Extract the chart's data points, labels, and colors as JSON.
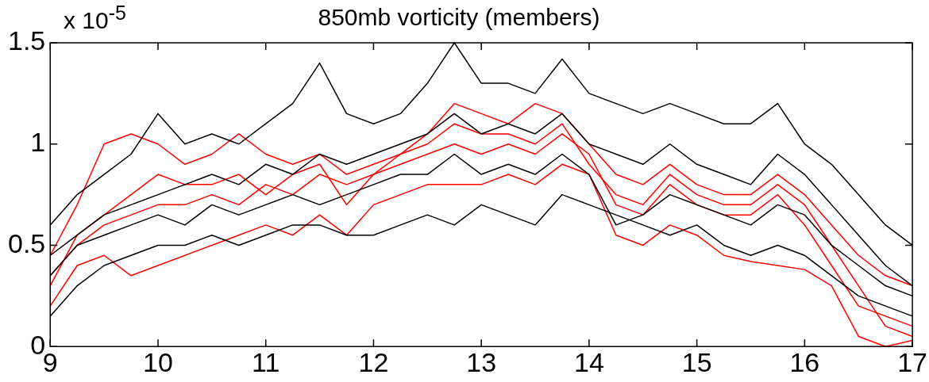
{
  "chart_data": {
    "type": "line",
    "title": "850mb vorticity (members)",
    "annotations": [
      "x 10$^{-5}$"
    ],
    "x": [
      9,
      9.25,
      9.5,
      9.75,
      10,
      10.25,
      10.5,
      10.75,
      11,
      11.25,
      11.5,
      11.75,
      12,
      12.25,
      12.5,
      12.75,
      13,
      13.25,
      13.5,
      13.75,
      14,
      14.25,
      14.5,
      14.75,
      15,
      15.25,
      15.5,
      15.75,
      16,
      16.25,
      16.5,
      16.75,
      17
    ],
    "series": [
      {
        "color": "#000000",
        "values": [
          0.6,
          0.75,
          0.85,
          0.95,
          1.15,
          1.0,
          1.05,
          1.0,
          1.1,
          1.2,
          1.4,
          1.15,
          1.1,
          1.15,
          1.3,
          1.5,
          1.3,
          1.3,
          1.25,
          1.42,
          1.25,
          1.2,
          1.15,
          1.2,
          1.15,
          1.1,
          1.1,
          1.2,
          1.0,
          0.9,
          0.75,
          0.6,
          0.5
        ]
      },
      {
        "color": "#000000",
        "values": [
          0.45,
          0.55,
          0.65,
          0.7,
          0.75,
          0.8,
          0.85,
          0.8,
          0.9,
          0.85,
          0.95,
          0.9,
          0.95,
          1.0,
          1.05,
          1.15,
          1.05,
          1.1,
          1.05,
          1.15,
          1.0,
          0.95,
          0.9,
          1.0,
          0.9,
          0.85,
          0.8,
          0.95,
          0.85,
          0.7,
          0.55,
          0.4,
          0.3
        ]
      },
      {
        "color": "#000000",
        "values": [
          0.15,
          0.3,
          0.4,
          0.45,
          0.5,
          0.5,
          0.55,
          0.5,
          0.55,
          0.6,
          0.6,
          0.55,
          0.55,
          0.6,
          0.65,
          0.6,
          0.7,
          0.65,
          0.6,
          0.75,
          0.7,
          0.65,
          0.6,
          0.55,
          0.6,
          0.5,
          0.45,
          0.5,
          0.45,
          0.35,
          0.25,
          0.2,
          0.15
        ]
      },
      {
        "color": "#000000",
        "values": [
          0.35,
          0.5,
          0.55,
          0.6,
          0.65,
          0.6,
          0.7,
          0.65,
          0.7,
          0.75,
          0.7,
          0.75,
          0.8,
          0.85,
          0.85,
          0.95,
          0.85,
          0.9,
          0.85,
          0.95,
          0.85,
          0.6,
          0.65,
          0.75,
          0.7,
          0.65,
          0.6,
          0.7,
          0.65,
          0.5,
          0.4,
          0.3,
          0.25
        ]
      },
      {
        "color": "#ff0000",
        "values": [
          0.45,
          0.7,
          1.0,
          1.05,
          1.0,
          0.9,
          0.95,
          1.05,
          0.95,
          0.9,
          0.95,
          0.85,
          0.9,
          0.95,
          1.05,
          1.2,
          1.15,
          1.1,
          1.2,
          1.15,
          1.0,
          0.85,
          0.8,
          0.9,
          0.8,
          0.75,
          0.75,
          0.85,
          0.75,
          0.6,
          0.45,
          0.35,
          0.3
        ]
      },
      {
        "color": "#ff0000",
        "values": [
          0.35,
          0.5,
          0.6,
          0.65,
          0.7,
          0.7,
          0.75,
          0.7,
          0.8,
          0.75,
          0.85,
          0.8,
          0.85,
          0.9,
          0.95,
          1.0,
          0.95,
          1.0,
          0.95,
          1.05,
          0.95,
          0.7,
          0.65,
          0.8,
          0.7,
          0.65,
          0.65,
          0.75,
          0.6,
          0.4,
          0.2,
          0.15,
          0.1
        ]
      },
      {
        "color": "#ff0000",
        "values": [
          0.2,
          0.4,
          0.45,
          0.35,
          0.4,
          0.45,
          0.5,
          0.55,
          0.6,
          0.55,
          0.65,
          0.55,
          0.7,
          0.75,
          0.8,
          0.8,
          0.8,
          0.85,
          0.8,
          0.9,
          0.85,
          0.55,
          0.5,
          0.6,
          0.55,
          0.45,
          0.42,
          0.4,
          0.38,
          0.3,
          0.05,
          0.0,
          0.03
        ]
      },
      {
        "color": "#ff0000",
        "values": [
          0.3,
          0.55,
          0.65,
          0.75,
          0.85,
          0.8,
          0.8,
          0.85,
          0.75,
          0.85,
          0.9,
          0.7,
          0.85,
          0.95,
          1.0,
          1.1,
          1.05,
          1.05,
          1.0,
          1.1,
          0.9,
          0.75,
          0.7,
          0.85,
          0.75,
          0.7,
          0.7,
          0.8,
          0.7,
          0.5,
          0.3,
          0.1,
          0.05
        ]
      }
    ],
    "xlim": [
      9,
      17
    ],
    "xticks": [
      9,
      10,
      11,
      12,
      13,
      14,
      15,
      16,
      17
    ],
    "ylim": [
      0,
      1.5
    ],
    "yticks": [
      0,
      0.5,
      1,
      1.5
    ],
    "grid": false,
    "legend": false,
    "marker": "none",
    "line_style": "solid"
  }
}
